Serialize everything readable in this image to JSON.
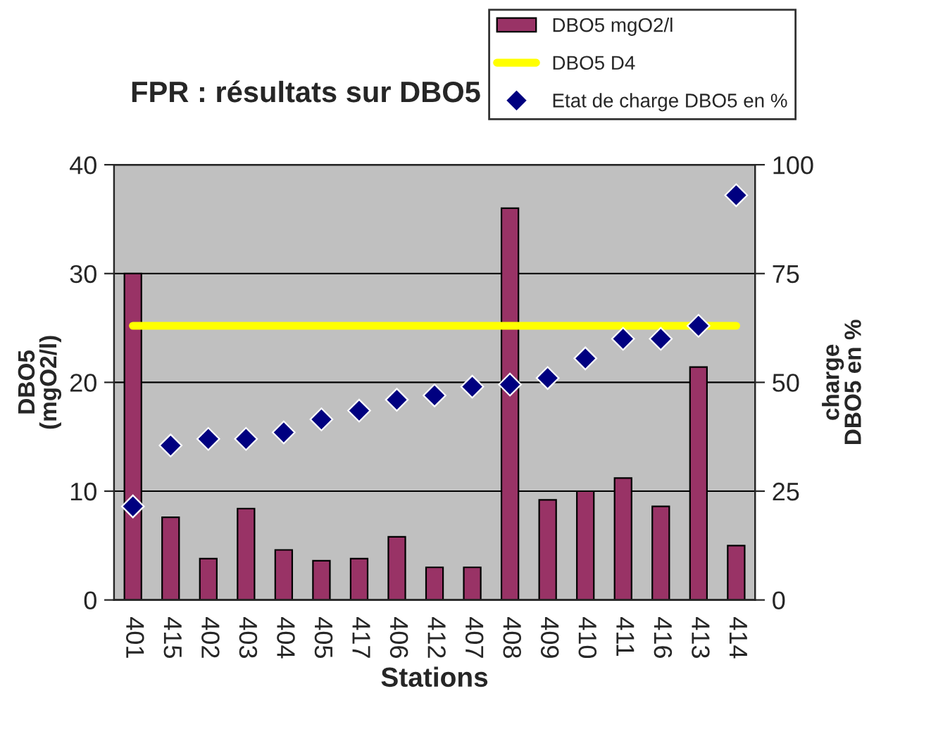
{
  "chart_data": {
    "type": "bar",
    "title": "FPR : résultats sur DBO5",
    "xlabel": "Stations",
    "ylabel": "DBO5\n(mgO2/l)",
    "y2label": "charge\nDBO5 en %",
    "categories": [
      "401",
      "415",
      "402",
      "403",
      "404",
      "405",
      "417",
      "406",
      "412",
      "407",
      "408",
      "409",
      "410",
      "411",
      "416",
      "413",
      "414"
    ],
    "series": [
      {
        "name": "DBO5 mgO2/l",
        "color": "#993366",
        "values": [
          30,
          7.6,
          3.8,
          8.4,
          4.6,
          3.6,
          3.8,
          5.8,
          3,
          3,
          36,
          9.2,
          10,
          11.2,
          8.6,
          21.4,
          5
        ]
      },
      {
        "name": "DBO5 D4",
        "type": "line",
        "color": "#ffff00",
        "values": [
          25.2,
          25.2,
          25.2,
          25.2,
          25.2,
          25.2,
          25.2,
          25.2,
          25.2,
          25.2,
          25.2,
          25.2,
          25.2,
          25.2,
          25.2,
          25.2,
          25.2
        ]
      },
      {
        "name": "Etat de charge DBO5 en %",
        "type": "scatter",
        "axis": "y2",
        "marker": "diamond",
        "color": "#000080",
        "values": [
          21.5,
          35.5,
          37,
          37,
          38.5,
          41.5,
          43.5,
          46,
          47,
          49,
          49.5,
          51,
          55.5,
          60,
          60,
          63,
          93
        ]
      }
    ],
    "ylim": [
      0,
      40
    ],
    "yticks": [
      0,
      10,
      20,
      30,
      40
    ],
    "y2lim": [
      0,
      100
    ],
    "y2ticks": [
      0,
      25,
      50,
      75,
      100
    ],
    "grid": "y",
    "legend": "top right"
  }
}
